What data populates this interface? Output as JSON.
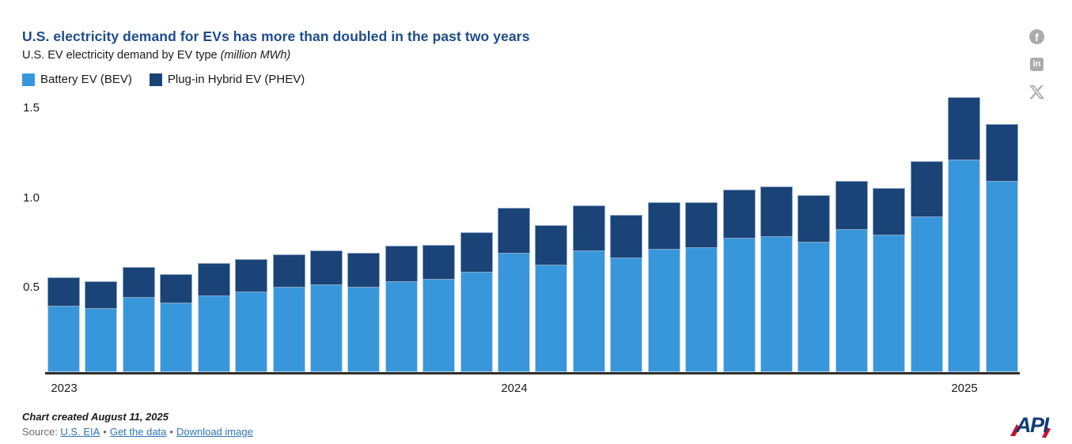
{
  "header": {
    "title": "U.S. electricity demand for EVs has more than doubled in the past two years",
    "subtitle": "U.S. EV electricity demand by EV type ",
    "subtitle_unit": "(million MWh)"
  },
  "legend": {
    "items": [
      {
        "label": "Battery EV (BEV)",
        "color": "#3897DB"
      },
      {
        "label": "Plug-in Hybrid EV (PHEV)",
        "color": "#1A4377"
      }
    ]
  },
  "social": {
    "facebook_glyph": "f",
    "linkedin_glyph": "in"
  },
  "chart_data": {
    "type": "bar",
    "stacked": true,
    "title": "U.S. electricity demand for EVs has more than doubled in the past two years",
    "subtitle": "U.S. EV electricity demand by EV type (million MWh)",
    "unit": "million MWh",
    "ylim": [
      0,
      1.6
    ],
    "grid": false,
    "legend_position": "top-left",
    "categories": [
      "Jan 2023",
      "Feb 2023",
      "Mar 2023",
      "Apr 2023",
      "May 2023",
      "Jun 2023",
      "Jul 2023",
      "Aug 2023",
      "Sep 2023",
      "Oct 2023",
      "Nov 2023",
      "Dec 2023",
      "Jan 2024",
      "Feb 2024",
      "Mar 2024",
      "Apr 2024",
      "May 2024",
      "Jun 2024",
      "Jul 2024",
      "Aug 2024",
      "Sep 2024",
      "Oct 2024",
      "Nov 2024",
      "Dec 2024",
      "Jan 2025",
      "Feb 2025"
    ],
    "series": [
      {
        "name": "Battery EV (BEV)",
        "color": "#3897DB",
        "values": [
          0.37,
          0.36,
          0.42,
          0.39,
          0.43,
          0.45,
          0.48,
          0.49,
          0.48,
          0.51,
          0.52,
          0.56,
          0.67,
          0.6,
          0.68,
          0.64,
          0.69,
          0.7,
          0.75,
          0.76,
          0.73,
          0.8,
          0.77,
          0.87,
          1.19,
          1.07
        ]
      },
      {
        "name": "Plug-in Hybrid EV (PHEV)",
        "color": "#1A4377",
        "values": [
          0.16,
          0.15,
          0.17,
          0.16,
          0.18,
          0.18,
          0.18,
          0.19,
          0.19,
          0.2,
          0.19,
          0.22,
          0.25,
          0.22,
          0.25,
          0.24,
          0.26,
          0.25,
          0.27,
          0.28,
          0.26,
          0.27,
          0.26,
          0.31,
          0.35,
          0.32
        ]
      }
    ],
    "yticks": [
      {
        "value": 0.5,
        "label": "0.5"
      },
      {
        "value": 1.0,
        "label": "1.0"
      },
      {
        "value": 1.5,
        "label": "1.5"
      }
    ],
    "xticks": [
      {
        "index": 0,
        "label": "2023"
      },
      {
        "index": 12,
        "label": "2024"
      },
      {
        "index": 24,
        "label": "2025"
      }
    ]
  },
  "footer": {
    "created": "Chart created August 11, 2025",
    "source_prefix": "Source: ",
    "separator": "•",
    "links": [
      {
        "label": "U.S. EIA"
      },
      {
        "label": "Get the data"
      },
      {
        "label": "Download image"
      }
    ]
  },
  "logo": {
    "text": "API"
  }
}
